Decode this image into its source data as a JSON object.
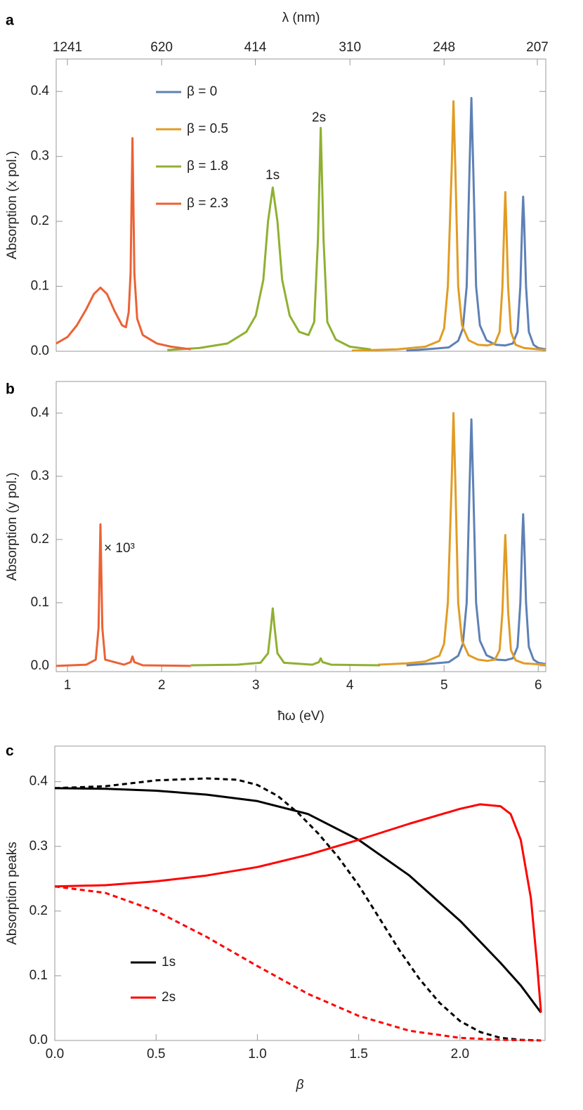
{
  "chart_data": [
    {
      "type": "line",
      "panel_label": "a",
      "x2label": "λ (nm)",
      "ylabel": "Absorption (x pol.)",
      "xlim": [
        0.88,
        6.08
      ],
      "ylim": [
        0,
        0.45
      ],
      "yticks": [
        {
          "value": 0,
          "label": "0.0"
        },
        0.1,
        0.2,
        0.3,
        0.4
      ],
      "x2ticks": [
        1241,
        620,
        414,
        310,
        248,
        207
      ],
      "legend": "upper left",
      "annotations": [
        "1s",
        "2s"
      ],
      "series": [
        {
          "name": "β = 0",
          "color": "#5e81b5",
          "x": [
            4.6,
            4.9,
            5.05,
            5.15,
            5.2,
            5.24,
            5.27,
            5.29,
            5.31,
            5.34,
            5.38,
            5.45,
            5.55,
            5.65,
            5.73,
            5.78,
            5.81,
            5.83,
            5.84,
            5.85,
            5.87,
            5.9,
            5.95,
            6.0,
            6.08
          ],
          "values": [
            0.001,
            0.004,
            0.006,
            0.016,
            0.035,
            0.1,
            0.28,
            0.39,
            0.28,
            0.1,
            0.04,
            0.017,
            0.01,
            0.009,
            0.012,
            0.03,
            0.1,
            0.2,
            0.238,
            0.2,
            0.1,
            0.03,
            0.01,
            0.005,
            0.003
          ]
        },
        {
          "name": "β = 0.5",
          "color": "#e19c24",
          "x": [
            4.02,
            4.5,
            4.8,
            4.95,
            5.0,
            5.04,
            5.08,
            5.1,
            5.12,
            5.15,
            5.19,
            5.26,
            5.36,
            5.46,
            5.54,
            5.59,
            5.62,
            5.64,
            5.65,
            5.66,
            5.68,
            5.71,
            5.76,
            5.85,
            6.08
          ],
          "values": [
            0.001,
            0.003,
            0.007,
            0.016,
            0.035,
            0.1,
            0.28,
            0.385,
            0.28,
            0.1,
            0.04,
            0.017,
            0.01,
            0.009,
            0.012,
            0.03,
            0.1,
            0.2,
            0.245,
            0.2,
            0.1,
            0.03,
            0.01,
            0.005,
            0.002
          ]
        },
        {
          "name": "β = 1.8",
          "color": "#8fb032",
          "x": [
            2.06,
            2.4,
            2.7,
            2.9,
            3.0,
            3.08,
            3.13,
            3.18,
            3.23,
            3.28,
            3.36,
            3.46,
            3.56,
            3.62,
            3.66,
            3.69,
            3.72,
            3.76,
            3.85,
            4.0,
            4.22
          ],
          "values": [
            0.002,
            0.005,
            0.012,
            0.03,
            0.055,
            0.11,
            0.2,
            0.252,
            0.2,
            0.11,
            0.055,
            0.03,
            0.025,
            0.045,
            0.17,
            0.344,
            0.17,
            0.045,
            0.018,
            0.007,
            0.003
          ]
        },
        {
          "name": "β = 2.3",
          "color": "#eb6235",
          "x": [
            0.88,
            1.0,
            1.1,
            1.2,
            1.28,
            1.35,
            1.42,
            1.5,
            1.58,
            1.62,
            1.65,
            1.67,
            1.69,
            1.71,
            1.74,
            1.8,
            1.95,
            2.1,
            2.31
          ],
          "values": [
            0.012,
            0.022,
            0.04,
            0.065,
            0.088,
            0.098,
            0.088,
            0.062,
            0.04,
            0.037,
            0.06,
            0.12,
            0.328,
            0.12,
            0.05,
            0.025,
            0.012,
            0.007,
            0.003
          ]
        }
      ]
    },
    {
      "type": "line",
      "panel_label": "b",
      "xlabel": "ħω (eV)",
      "ylabel": "Absorption (y pol.)",
      "xlim": [
        0.88,
        6.08
      ],
      "ylim": [
        -0.009,
        0.45
      ],
      "xticks": [
        1,
        2,
        3,
        4,
        5,
        6
      ],
      "yticks": [
        {
          "value": 0,
          "label": "0.0"
        },
        0.1,
        0.2,
        0.3,
        0.4
      ],
      "annotations": [
        "× 10³"
      ],
      "series": [
        {
          "color": "#5e81b5",
          "x": [
            4.6,
            4.9,
            5.05,
            5.15,
            5.2,
            5.24,
            5.27,
            5.29,
            5.31,
            5.34,
            5.38,
            5.45,
            5.55,
            5.65,
            5.73,
            5.78,
            5.81,
            5.83,
            5.84,
            5.85,
            5.87,
            5.9,
            5.95,
            6.0,
            6.08
          ],
          "values": [
            0.001,
            0.004,
            0.006,
            0.016,
            0.035,
            0.1,
            0.28,
            0.39,
            0.28,
            0.1,
            0.04,
            0.017,
            0.01,
            0.009,
            0.012,
            0.03,
            0.1,
            0.2,
            0.24,
            0.2,
            0.1,
            0.03,
            0.01,
            0.005,
            0.003
          ]
        },
        {
          "color": "#e19c24",
          "x": [
            4.3,
            4.6,
            4.8,
            4.95,
            5.0,
            5.04,
            5.08,
            5.1,
            5.12,
            5.15,
            5.19,
            5.26,
            5.36,
            5.46,
            5.54,
            5.59,
            5.62,
            5.64,
            5.65,
            5.66,
            5.68,
            5.71,
            5.76,
            5.85,
            6.08
          ],
          "values": [
            0.002,
            0.004,
            0.007,
            0.016,
            0.035,
            0.1,
            0.29,
            0.4,
            0.29,
            0.1,
            0.04,
            0.017,
            0.01,
            0.008,
            0.01,
            0.025,
            0.085,
            0.17,
            0.207,
            0.17,
            0.085,
            0.025,
            0.009,
            0.004,
            0.002
          ]
        },
        {
          "color": "#8fb032",
          "x": [
            2.31,
            2.8,
            3.05,
            3.13,
            3.16,
            3.18,
            3.2,
            3.23,
            3.3,
            3.6,
            3.67,
            3.69,
            3.71,
            3.8,
            4.32
          ],
          "values": [
            0.001,
            0.002,
            0.005,
            0.02,
            0.06,
            0.091,
            0.06,
            0.02,
            0.005,
            0.002,
            0.006,
            0.012,
            0.006,
            0.002,
            0.001
          ]
        },
        {
          "color": "#eb6235",
          "x": [
            0.88,
            1.2,
            1.3,
            1.33,
            1.35,
            1.37,
            1.4,
            1.6,
            1.67,
            1.69,
            1.71,
            1.8,
            2.31
          ],
          "values": [
            0,
            0.002,
            0.01,
            0.06,
            0.224,
            0.06,
            0.01,
            0.002,
            0.006,
            0.015,
            0.006,
            0.001,
            0
          ]
        }
      ]
    },
    {
      "type": "line",
      "panel_label": "c",
      "xlabel": "β",
      "ylabel": "Absorption peaks",
      "xlim": [
        0,
        2.42
      ],
      "ylim": [
        0,
        0.455
      ],
      "xticks": [
        {
          "value": 0,
          "label": "0.0"
        },
        0.5,
        {
          "value": 1,
          "label": "1.0"
        },
        1.5,
        {
          "value": 2,
          "label": "2.0"
        }
      ],
      "yticks": [
        {
          "value": 0,
          "label": "0.0"
        },
        0.1,
        0.2,
        0.3,
        0.4
      ],
      "legend": "lower left",
      "series": [
        {
          "name": "1s",
          "color": "#000000",
          "x": [
            0,
            0.25,
            0.5,
            0.75,
            1.0,
            1.25,
            1.5,
            1.75,
            2.0,
            2.2,
            2.3,
            2.4
          ],
          "values": [
            0.39,
            0.389,
            0.386,
            0.38,
            0.37,
            0.35,
            0.31,
            0.255,
            0.185,
            0.12,
            0.085,
            0.043
          ]
        },
        {
          "name": "2s",
          "color": "#ff0000",
          "x": [
            0,
            0.25,
            0.5,
            0.75,
            1.0,
            1.25,
            1.5,
            1.75,
            2.0,
            2.1,
            2.2,
            2.25,
            2.3,
            2.35,
            2.38,
            2.4
          ],
          "values": [
            0.238,
            0.24,
            0.246,
            0.255,
            0.268,
            0.287,
            0.31,
            0.335,
            0.358,
            0.365,
            0.362,
            0.35,
            0.31,
            0.22,
            0.12,
            0.043
          ]
        },
        {
          "color": "#000000",
          "dash": true,
          "x": [
            0,
            0.25,
            0.5,
            0.75,
            0.9,
            1.0,
            1.1,
            1.2,
            1.3,
            1.4,
            1.5,
            1.6,
            1.7,
            1.8,
            1.9,
            2.0,
            2.1,
            2.2,
            2.3,
            2.4
          ],
          "values": [
            0.39,
            0.393,
            0.402,
            0.405,
            0.403,
            0.395,
            0.378,
            0.352,
            0.32,
            0.283,
            0.24,
            0.19,
            0.14,
            0.095,
            0.058,
            0.03,
            0.013,
            0.004,
            0.001,
            0
          ]
        },
        {
          "color": "#ff0000",
          "dash": true,
          "x": [
            0,
            0.25,
            0.5,
            0.75,
            1.0,
            1.25,
            1.5,
            1.75,
            2.0,
            2.2,
            2.4
          ],
          "values": [
            0.238,
            0.228,
            0.2,
            0.16,
            0.115,
            0.072,
            0.038,
            0.015,
            0.004,
            0.001,
            0
          ]
        }
      ]
    }
  ]
}
